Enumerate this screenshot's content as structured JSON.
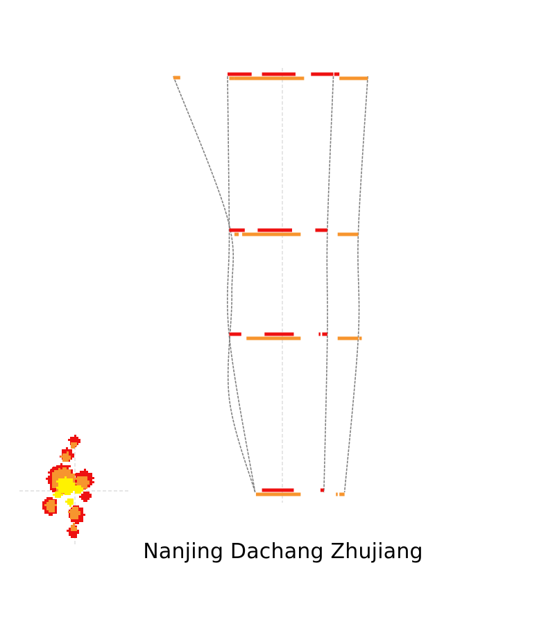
{
  "title": "Nanjing Dachang Zhujiang",
  "colors": {
    "interval_a": "#ee1111",
    "interval_b": "#f7952e",
    "connector": "#808080",
    "axis": "#cccccc",
    "map_dark": "#ee1111",
    "map_mid": "#f7952e",
    "map_light": "#fff200"
  },
  "levels": [
    {
      "segments_a": [
        [
          0.0,
          0.28
        ],
        [
          0.4,
          0.79
        ],
        [
          0.97,
          1.23
        ],
        [
          1.24,
          1.3
        ]
      ],
      "segments_b": [
        [
          0.02,
          0.08
        ],
        [
          0.08,
          0.89
        ],
        [
          1.3,
          1.63
        ]
      ],
      "marker_b": [
        -0.63,
        -0.55
      ]
    },
    {
      "segments_a": [
        [
          0.02,
          0.2
        ],
        [
          0.35,
          0.75
        ],
        [
          1.02,
          1.16
        ]
      ],
      "segments_b": [
        [
          0.08,
          0.13
        ],
        [
          0.17,
          0.85
        ],
        [
          1.28,
          1.52
        ]
      ],
      "marker_b": null
    },
    {
      "segments_a": [
        [
          0.02,
          0.16
        ],
        [
          0.43,
          0.77
        ],
        [
          1.06,
          1.08
        ],
        [
          1.1,
          1.16
        ]
      ],
      "segments_b": [
        [
          0.22,
          0.85
        ],
        [
          1.28,
          1.52
        ],
        [
          1.53,
          1.56
        ]
      ],
      "marker_b": null
    },
    {
      "segments_a": [
        [
          0.4,
          0.77
        ],
        [
          1.08,
          1.12
        ]
      ],
      "segments_b": [
        [
          0.33,
          0.85
        ],
        [
          1.26,
          1.28
        ],
        [
          1.3,
          1.36
        ]
      ],
      "marker_b": null
    }
  ],
  "connectors": [
    [
      -0.63,
      0.0,
      0.05,
      0.02,
      0.32
    ],
    [
      0.0,
      0.02,
      0.02,
      0.32
    ],
    [
      1.23,
      1.16,
      1.16,
      1.12
    ],
    [
      1.63,
      1.52,
      1.52,
      1.36
    ]
  ]
}
